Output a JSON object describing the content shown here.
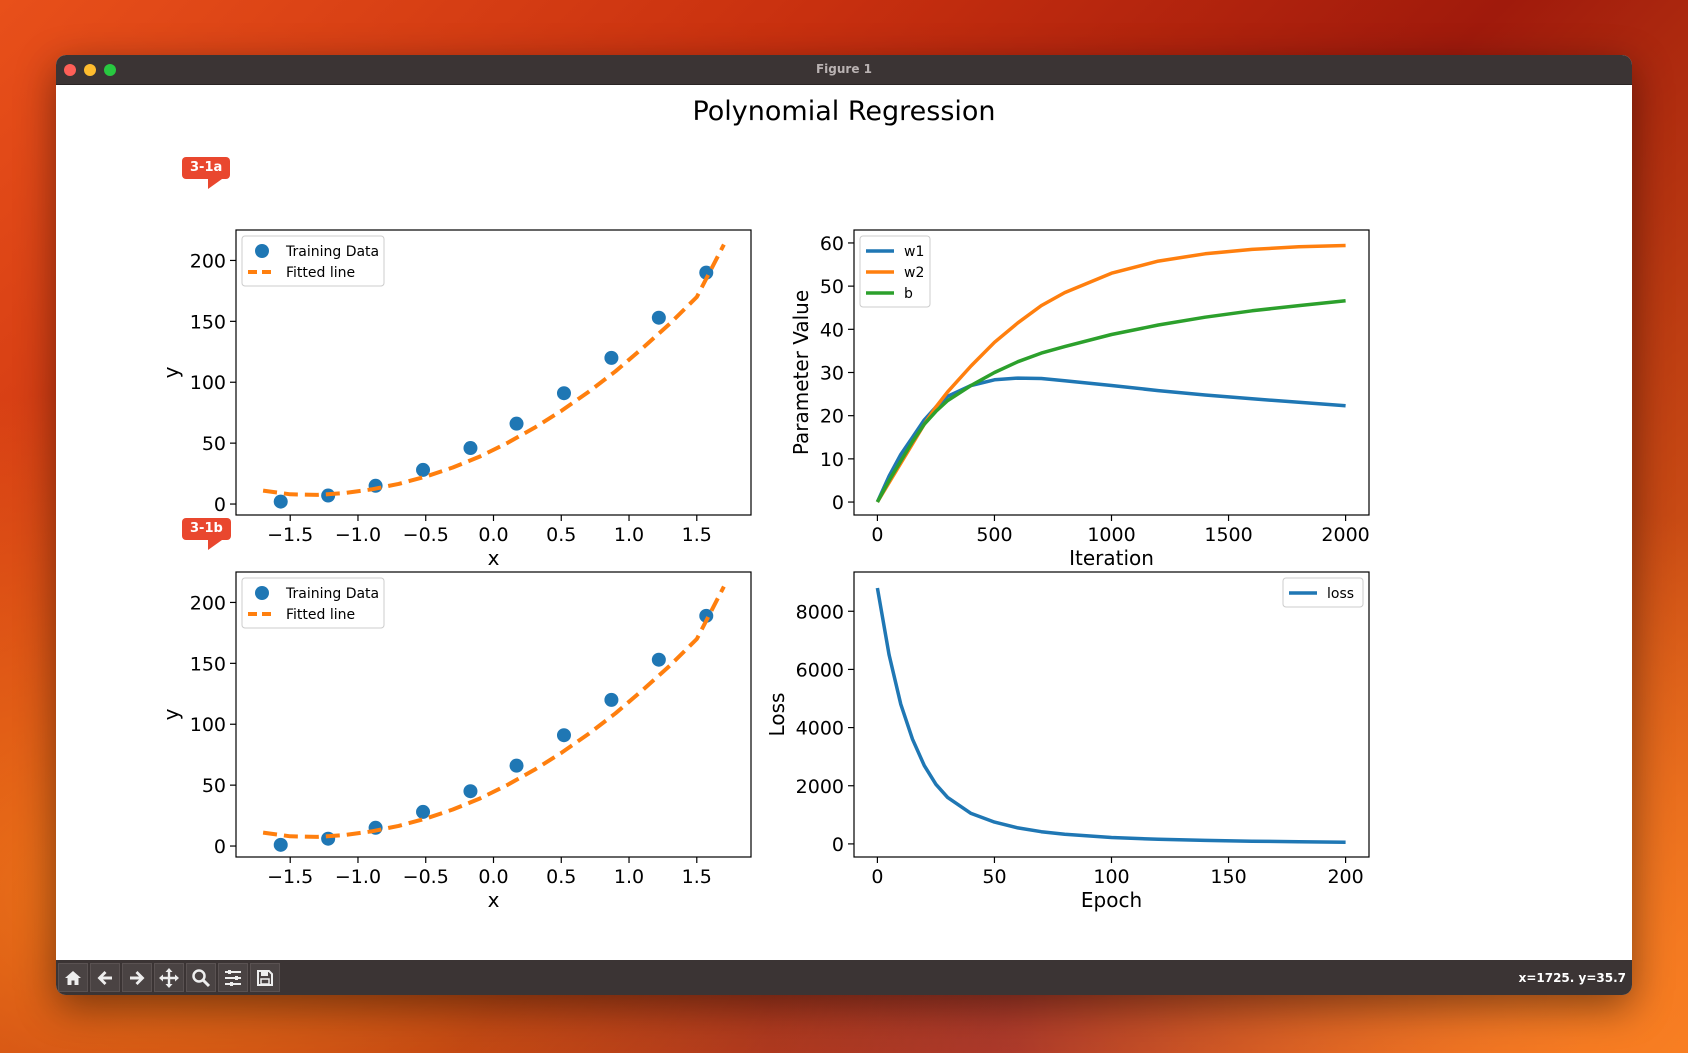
{
  "window": {
    "title": "Figure 1"
  },
  "figure_title": "Polynomial Regression",
  "badges": {
    "a": "3-1a",
    "b": "3-1b"
  },
  "status": {
    "coords": "x=1725. y=35.7"
  },
  "toolbar": [
    {
      "name": "home-icon"
    },
    {
      "name": "back-icon"
    },
    {
      "name": "forward-icon"
    },
    {
      "name": "pan-icon"
    },
    {
      "name": "zoom-icon"
    },
    {
      "name": "configure-subplots-icon"
    },
    {
      "name": "save-icon"
    }
  ],
  "colors": {
    "blue": "#1f77b4",
    "orange": "#ff7f0e",
    "green": "#2ca02c"
  },
  "chart_data": [
    {
      "type": "scatter",
      "id": "fit-a",
      "xlabel": "x",
      "ylabel": "y",
      "xlim": [
        -1.9,
        1.9
      ],
      "ylim": [
        -9,
        225
      ],
      "xticks": [
        -1.5,
        -1.0,
        -0.5,
        0.0,
        0.5,
        1.0,
        1.5
      ],
      "xtick_labels": [
        "−1.5",
        "−1.0",
        "−0.5",
        "0.0",
        "0.5",
        "1.0",
        "1.5"
      ],
      "yticks": [
        0,
        50,
        100,
        150,
        200
      ],
      "ytick_labels": [
        "0",
        "50",
        "100",
        "150",
        "200"
      ],
      "legend": [
        "Training Data",
        "Fitted line"
      ],
      "series": [
        {
          "name": "Training Data",
          "kind": "points",
          "x": [
            -1.57,
            -1.22,
            -0.87,
            -0.52,
            -0.17,
            0.17,
            0.52,
            0.87,
            1.22,
            1.57
          ],
          "y": [
            2,
            7,
            15,
            28,
            46,
            66,
            91,
            120,
            153,
            190
          ]
        },
        {
          "name": "Fitted line",
          "kind": "dashed-line",
          "x": [
            -1.7,
            -1.5,
            -1.3,
            -1.1,
            -0.9,
            -0.7,
            -0.5,
            -0.3,
            -0.1,
            0.1,
            0.3,
            0.5,
            0.7,
            0.9,
            1.1,
            1.3,
            1.5,
            1.7
          ],
          "y": [
            11,
            8,
            7.5,
            9,
            12,
            16.5,
            22.5,
            30,
            39,
            50,
            62.5,
            76.5,
            92,
            109,
            128,
            148,
            170,
            213
          ]
        }
      ]
    },
    {
      "type": "line",
      "id": "params",
      "xlabel": "Iteration",
      "ylabel": "Parameter Value",
      "xlim": [
        -100,
        2100
      ],
      "ylim": [
        -3,
        63
      ],
      "xticks": [
        0,
        500,
        1000,
        1500,
        2000
      ],
      "xtick_labels": [
        "0",
        "500",
        "1000",
        "1500",
        "2000"
      ],
      "yticks": [
        0,
        10,
        20,
        30,
        40,
        50,
        60
      ],
      "ytick_labels": [
        "0",
        "10",
        "20",
        "30",
        "40",
        "50",
        "60"
      ],
      "legend": [
        "w1",
        "w2",
        "b"
      ],
      "series": [
        {
          "name": "w1",
          "x": [
            0,
            50,
            100,
            150,
            200,
            250,
            300,
            400,
            500,
            600,
            700,
            800,
            1000,
            1200,
            1400,
            1600,
            1800,
            2000
          ],
          "y": [
            0,
            6,
            11,
            15,
            19,
            22,
            24.5,
            27,
            28.3,
            28.7,
            28.6,
            28.1,
            27,
            25.8,
            24.8,
            23.9,
            23.1,
            22.3
          ]
        },
        {
          "name": "w2",
          "x": [
            0,
            50,
            100,
            150,
            200,
            250,
            300,
            400,
            500,
            600,
            700,
            800,
            1000,
            1200,
            1400,
            1600,
            1800,
            2000
          ],
          "y": [
            0,
            4.5,
            9,
            13.5,
            18,
            22,
            25.5,
            31.5,
            37,
            41.5,
            45.5,
            48.5,
            53,
            55.8,
            57.5,
            58.5,
            59.1,
            59.4
          ]
        },
        {
          "name": "b",
          "x": [
            0,
            50,
            100,
            150,
            200,
            250,
            300,
            400,
            500,
            600,
            700,
            800,
            1000,
            1200,
            1400,
            1600,
            1800,
            2000
          ],
          "y": [
            0,
            5,
            9.5,
            14,
            18,
            21,
            23.5,
            27,
            30,
            32.5,
            34.5,
            36,
            38.8,
            41,
            42.8,
            44.3,
            45.5,
            46.6
          ]
        }
      ]
    },
    {
      "type": "scatter",
      "id": "fit-b",
      "xlabel": "x",
      "ylabel": "y",
      "xlim": [
        -1.9,
        1.9
      ],
      "ylim": [
        -9,
        225
      ],
      "xticks": [
        -1.5,
        -1.0,
        -0.5,
        0.0,
        0.5,
        1.0,
        1.5
      ],
      "xtick_labels": [
        "−1.5",
        "−1.0",
        "−0.5",
        "0.0",
        "0.5",
        "1.0",
        "1.5"
      ],
      "yticks": [
        0,
        50,
        100,
        150,
        200
      ],
      "ytick_labels": [
        "0",
        "50",
        "100",
        "150",
        "200"
      ],
      "legend": [
        "Training Data",
        "Fitted line"
      ],
      "series": [
        {
          "name": "Training Data",
          "kind": "points",
          "x": [
            -1.57,
            -1.22,
            -0.87,
            -0.52,
            -0.17,
            0.17,
            0.52,
            0.87,
            1.22,
            1.57
          ],
          "y": [
            1,
            6,
            15,
            28,
            45,
            66,
            91,
            120,
            153,
            189
          ]
        },
        {
          "name": "Fitted line",
          "kind": "dashed-line",
          "x": [
            -1.7,
            -1.5,
            -1.3,
            -1.1,
            -0.9,
            -0.7,
            -0.5,
            -0.3,
            -0.1,
            0.1,
            0.3,
            0.5,
            0.7,
            0.9,
            1.1,
            1.3,
            1.5,
            1.7
          ],
          "y": [
            11,
            8,
            7.5,
            9,
            12,
            16.5,
            22.5,
            30,
            39,
            50,
            62.5,
            76.5,
            92,
            109,
            128,
            148,
            170,
            213
          ]
        }
      ]
    },
    {
      "type": "line",
      "id": "loss",
      "xlabel": "Epoch",
      "ylabel": "Loss",
      "xlim": [
        -10,
        210
      ],
      "ylim": [
        -450,
        9350
      ],
      "xticks": [
        0,
        50,
        100,
        150,
        200
      ],
      "xtick_labels": [
        "0",
        "50",
        "100",
        "150",
        "200"
      ],
      "yticks": [
        0,
        2000,
        4000,
        6000,
        8000
      ],
      "ytick_labels": [
        "0",
        "2000",
        "4000",
        "6000",
        "8000"
      ],
      "legend": [
        "loss"
      ],
      "series": [
        {
          "name": "loss",
          "x": [
            0,
            5,
            10,
            15,
            20,
            25,
            30,
            40,
            50,
            60,
            70,
            80,
            100,
            120,
            140,
            160,
            180,
            200
          ],
          "y": [
            8800,
            6500,
            4800,
            3600,
            2700,
            2050,
            1600,
            1050,
            750,
            550,
            420,
            330,
            220,
            160,
            120,
            95,
            75,
            60
          ]
        }
      ]
    }
  ]
}
